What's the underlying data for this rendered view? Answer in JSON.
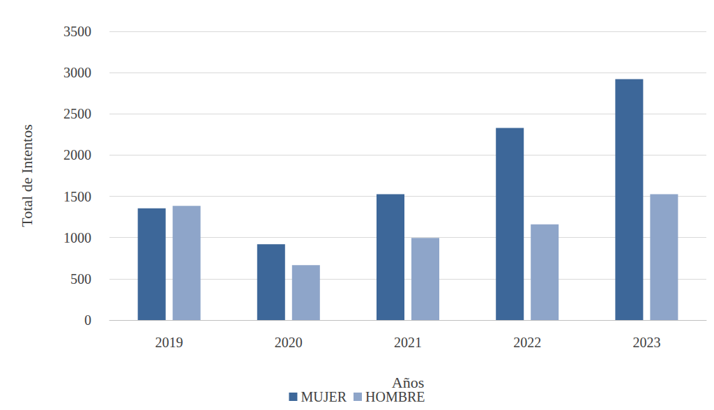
{
  "chart_data": {
    "type": "bar",
    "x_label": "Años",
    "y_label": "Total de Intentos",
    "categories": [
      "2019",
      "2020",
      "2021",
      "2022",
      "2023"
    ],
    "series": [
      {
        "name": "MUJER",
        "color": "#3d6799",
        "values": [
          1355,
          920,
          1525,
          2330,
          2920
        ]
      },
      {
        "name": "HOMBRE",
        "color": "#8ea5c9",
        "values": [
          1385,
          665,
          995,
          1160,
          1525
        ]
      }
    ],
    "ylim": [
      0,
      3500
    ],
    "yticks": [
      0,
      500,
      1000,
      1500,
      2000,
      2500,
      3000,
      3500
    ],
    "grid": true,
    "legend": "bottom"
  }
}
